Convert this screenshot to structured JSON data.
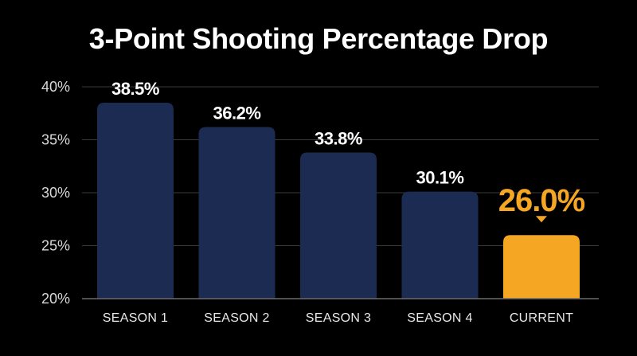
{
  "chart_data": {
    "type": "bar",
    "title": "3-Point Shooting Percentage Drop",
    "xlabel": "",
    "ylabel": "",
    "categories": [
      "SEASON 1",
      "SEASON 2",
      "SEASON 3",
      "SEASON 4",
      "CURRENT"
    ],
    "values": [
      38.5,
      36.2,
      33.8,
      30.1,
      26.0
    ],
    "value_labels": [
      "38.5%",
      "36.2%",
      "33.8%",
      "30.1%",
      "26.0%"
    ],
    "ylim": [
      20,
      40
    ],
    "yticks": [
      20,
      25,
      30,
      35,
      40
    ],
    "ytick_labels": [
      "20%",
      "25%",
      "30%",
      "35%",
      "40%"
    ],
    "grid": true,
    "highlight_index": 4,
    "colors": {
      "bar": "#1b2b52",
      "highlight": "#f5a623",
      "grid": "#3a3a3a",
      "background": "#000000"
    }
  }
}
